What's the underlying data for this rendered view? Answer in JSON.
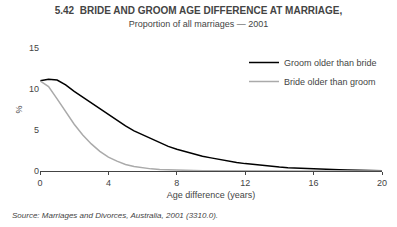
{
  "chart_data": {
    "type": "line",
    "title": "5.42  BRIDE AND GROOM AGE DIFFERENCE AT MARRIAGE,",
    "subtitle": "Proportion of all marriages — 2001",
    "xlabel": "Age difference (years)",
    "ylabel": "%",
    "annotations": [
      "Source: Marriages and Divorces, Australia, 2001 (3310.0)."
    ],
    "x": [
      0,
      0.5,
      1,
      1.5,
      2,
      2.5,
      3,
      3.5,
      4,
      4.5,
      5,
      5.5,
      6,
      6.5,
      7,
      7.5,
      8,
      8.5,
      9,
      9.5,
      10,
      10.5,
      11,
      11.5,
      12,
      12.5,
      13,
      13.5,
      14,
      14.5,
      15,
      15.5,
      16,
      16.5,
      17,
      17.5,
      18,
      18.5,
      19,
      19.5,
      20
    ],
    "series": [
      {
        "name": "Groom older than bride",
        "color": "#000000",
        "values": [
          11.0,
          11.2,
          11.1,
          10.5,
          9.7,
          9.0,
          8.2,
          7.5,
          6.8,
          6.1,
          5.5,
          4.9,
          4.4,
          3.9,
          3.4,
          3.0,
          2.65,
          2.35,
          2.05,
          1.8,
          1.6,
          1.4,
          1.2,
          1.05,
          0.9,
          0.78,
          0.67,
          0.57,
          0.48,
          0.41,
          0.35,
          0.29,
          0.24,
          0.2,
          0.17,
          0.14,
          0.11,
          0.09,
          0.07,
          0.05,
          0.04
        ]
      },
      {
        "name": "Bride older than groom",
        "color": "#aaaaaa",
        "values": [
          11.0,
          10.3,
          8.8,
          7.2,
          5.7,
          4.4,
          3.3,
          2.4,
          1.7,
          1.2,
          0.8,
          0.55,
          0.38,
          0.26,
          0.18,
          0.13,
          0.09,
          0.06,
          0.05,
          0.04,
          0.03,
          0.02,
          0.02,
          0.01,
          0.01,
          0.01,
          0.0,
          0.0,
          0.0,
          0.0,
          0.0,
          0.0,
          0.0,
          0.0,
          0.0,
          0.0,
          0.0,
          0.0,
          0.0,
          0.0,
          0.0
        ]
      }
    ],
    "xlim": [
      0,
      20
    ],
    "ylim": [
      0,
      15
    ],
    "xticks": [
      0,
      4,
      8,
      12,
      16,
      20
    ],
    "yticks": [
      0,
      5,
      10,
      15
    ],
    "grid": false,
    "legend": "upper right"
  }
}
